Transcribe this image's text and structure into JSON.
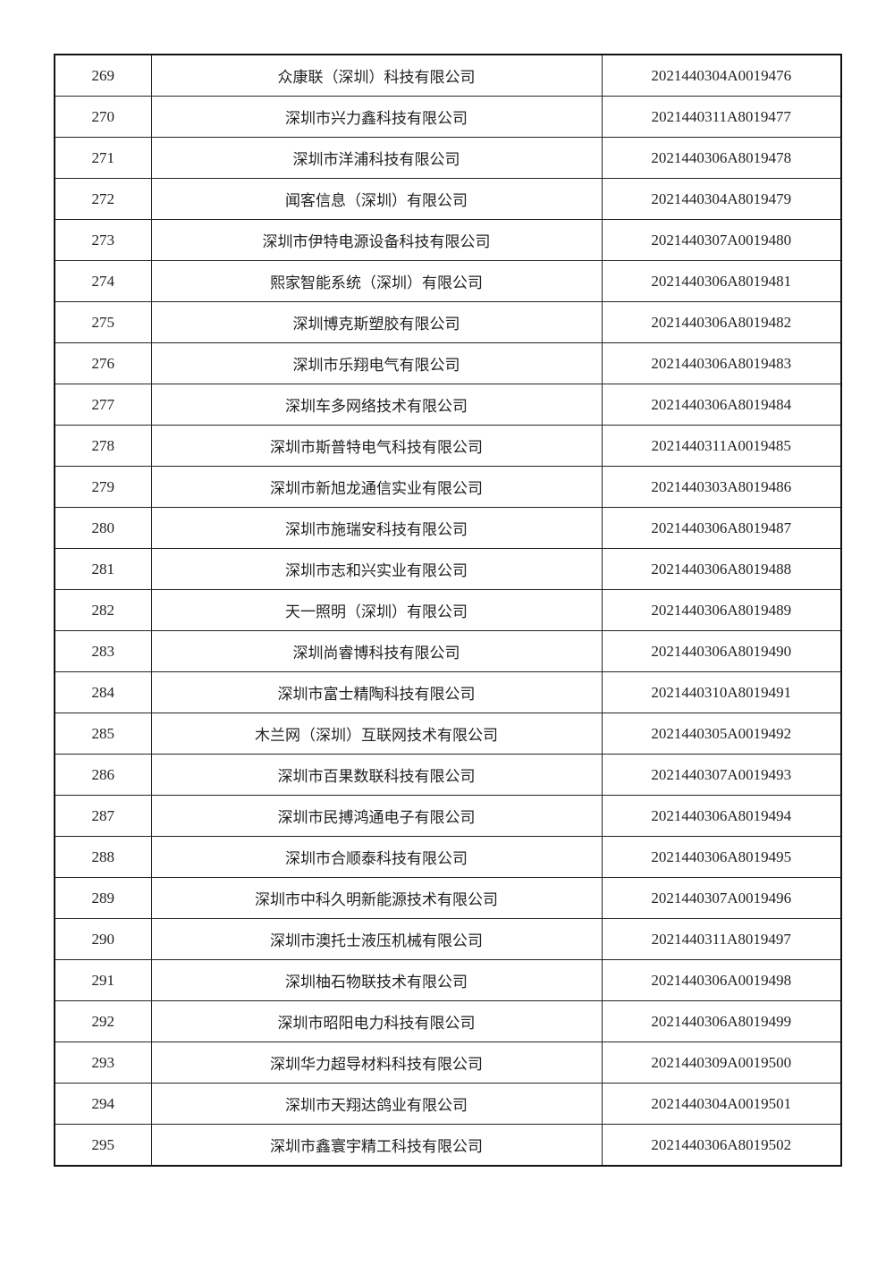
{
  "rows": [
    {
      "no": "269",
      "name": "众康联（深圳）科技有限公司",
      "code": "2021440304A0019476"
    },
    {
      "no": "270",
      "name": "深圳市兴力鑫科技有限公司",
      "code": "2021440311A8019477"
    },
    {
      "no": "271",
      "name": "深圳市洋浦科技有限公司",
      "code": "2021440306A8019478"
    },
    {
      "no": "272",
      "name": "闻客信息（深圳）有限公司",
      "code": "2021440304A8019479"
    },
    {
      "no": "273",
      "name": "深圳市伊特电源设备科技有限公司",
      "code": "2021440307A0019480"
    },
    {
      "no": "274",
      "name": "熙家智能系统（深圳）有限公司",
      "code": "2021440306A8019481"
    },
    {
      "no": "275",
      "name": "深圳博克斯塑胶有限公司",
      "code": "2021440306A8019482"
    },
    {
      "no": "276",
      "name": "深圳市乐翔电气有限公司",
      "code": "2021440306A8019483"
    },
    {
      "no": "277",
      "name": "深圳车多网络技术有限公司",
      "code": "2021440306A8019484"
    },
    {
      "no": "278",
      "name": "深圳市斯普特电气科技有限公司",
      "code": "2021440311A0019485"
    },
    {
      "no": "279",
      "name": "深圳市新旭龙通信实业有限公司",
      "code": "2021440303A8019486"
    },
    {
      "no": "280",
      "name": "深圳市施瑞安科技有限公司",
      "code": "2021440306A8019487"
    },
    {
      "no": "281",
      "name": "深圳市志和兴实业有限公司",
      "code": "2021440306A8019488"
    },
    {
      "no": "282",
      "name": "天一照明（深圳）有限公司",
      "code": "2021440306A8019489"
    },
    {
      "no": "283",
      "name": "深圳尚睿博科技有限公司",
      "code": "2021440306A8019490"
    },
    {
      "no": "284",
      "name": "深圳市富士精陶科技有限公司",
      "code": "2021440310A8019491"
    },
    {
      "no": "285",
      "name": "木兰网（深圳）互联网技术有限公司",
      "code": "2021440305A0019492"
    },
    {
      "no": "286",
      "name": "深圳市百果数联科技有限公司",
      "code": "2021440307A0019493"
    },
    {
      "no": "287",
      "name": "深圳市民搏鸿通电子有限公司",
      "code": "2021440306A8019494"
    },
    {
      "no": "288",
      "name": "深圳市合顺泰科技有限公司",
      "code": "2021440306A8019495"
    },
    {
      "no": "289",
      "name": "深圳市中科久明新能源技术有限公司",
      "code": "2021440307A0019496"
    },
    {
      "no": "290",
      "name": "深圳市澳托士液压机械有限公司",
      "code": "2021440311A8019497"
    },
    {
      "no": "291",
      "name": "深圳柚石物联技术有限公司",
      "code": "2021440306A0019498"
    },
    {
      "no": "292",
      "name": "深圳市昭阳电力科技有限公司",
      "code": "2021440306A8019499"
    },
    {
      "no": "293",
      "name": "深圳华力超导材料科技有限公司",
      "code": "2021440309A0019500"
    },
    {
      "no": "294",
      "name": "深圳市天翔达鸽业有限公司",
      "code": "2021440304A0019501"
    },
    {
      "no": "295",
      "name": "深圳市鑫寰宇精工科技有限公司",
      "code": "2021440306A8019502"
    }
  ]
}
